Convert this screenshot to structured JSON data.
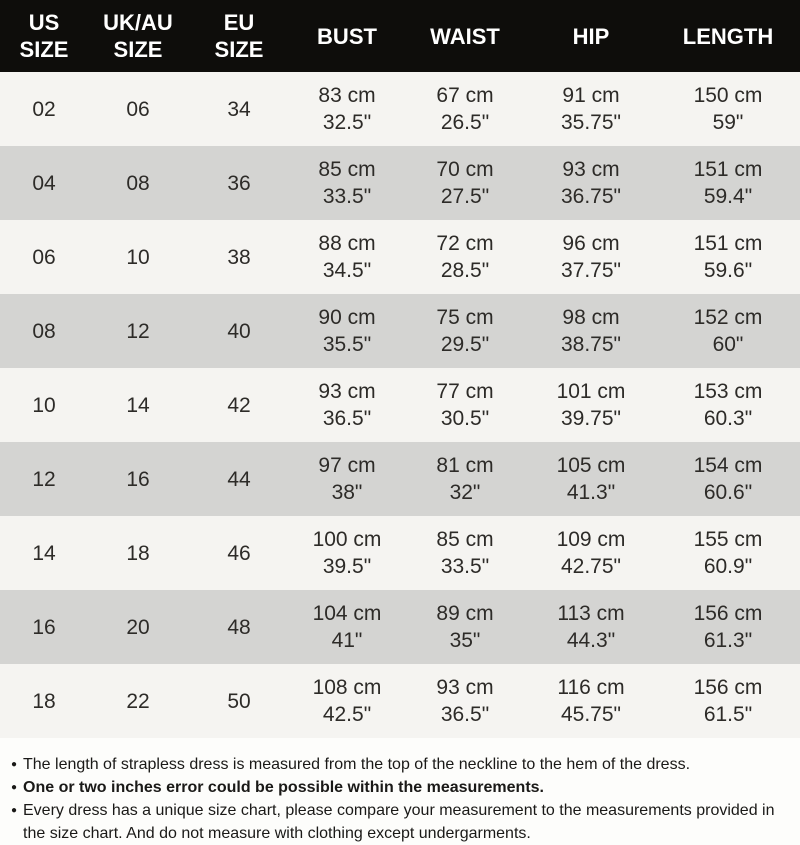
{
  "chart_data": {
    "type": "table",
    "title": "Dress size chart",
    "headers": [
      "US\nSIZE",
      "UK/AU\nSIZE",
      "EU\nSIZE",
      "BUST",
      "WAIST",
      "HIP",
      "LENGTH"
    ],
    "rows": [
      {
        "us": "02",
        "uk": "06",
        "eu": "34",
        "bust": "83 cm\n32.5\"",
        "waist": "67 cm\n26.5\"",
        "hip": "91 cm\n35.75\"",
        "length": "150 cm\n59\""
      },
      {
        "us": "04",
        "uk": "08",
        "eu": "36",
        "bust": "85 cm\n33.5\"",
        "waist": "70 cm\n27.5\"",
        "hip": "93 cm\n36.75\"",
        "length": "151 cm\n59.4\""
      },
      {
        "us": "06",
        "uk": "10",
        "eu": "38",
        "bust": "88 cm\n34.5\"",
        "waist": "72 cm\n28.5\"",
        "hip": "96 cm\n37.75\"",
        "length": "151 cm\n59.6\""
      },
      {
        "us": "08",
        "uk": "12",
        "eu": "40",
        "bust": "90 cm\n35.5\"",
        "waist": "75 cm\n29.5\"",
        "hip": "98 cm\n38.75\"",
        "length": "152 cm\n60\""
      },
      {
        "us": "10",
        "uk": "14",
        "eu": "42",
        "bust": "93 cm\n36.5\"",
        "waist": "77 cm\n30.5\"",
        "hip": "101 cm\n39.75\"",
        "length": "153 cm\n60.3\""
      },
      {
        "us": "12",
        "uk": "16",
        "eu": "44",
        "bust": "97 cm\n38\"",
        "waist": "81 cm\n32\"",
        "hip": "105 cm\n41.3\"",
        "length": "154 cm\n60.6\""
      },
      {
        "us": "14",
        "uk": "18",
        "eu": "46",
        "bust": "100 cm\n39.5\"",
        "waist": "85 cm\n33.5\"",
        "hip": "109 cm\n42.75\"",
        "length": "155 cm\n60.9\""
      },
      {
        "us": "16",
        "uk": "20",
        "eu": "48",
        "bust": "104 cm\n41\"",
        "waist": "89 cm\n35\"",
        "hip": "113 cm\n44.3\"",
        "length": "156 cm\n61.3\""
      },
      {
        "us": "18",
        "uk": "22",
        "eu": "50",
        "bust": "108 cm\n42.5\"",
        "waist": "93 cm\n36.5\"",
        "hip": "116 cm\n45.75\"",
        "length": "156 cm\n61.5\""
      }
    ],
    "colors": {
      "header_bg": "#0e0d0b",
      "header_text": "#ffffff",
      "row_light": "#f5f4f1",
      "row_dark": "#d4d4d2",
      "cell_text": "#2d2b28"
    }
  },
  "footer": {
    "bullet_glyph": "●",
    "notes": [
      {
        "text": "The length of strapless dress is measured from the top of the neckline to the hem of the dress."
      },
      {
        "text": "One or two inches error could be possible within the measurements."
      },
      {
        "text": "Every dress has a unique size chart, please compare your measurement to the measurements provided in the size chart. And do not measure with clothing except undergarments."
      }
    ]
  }
}
